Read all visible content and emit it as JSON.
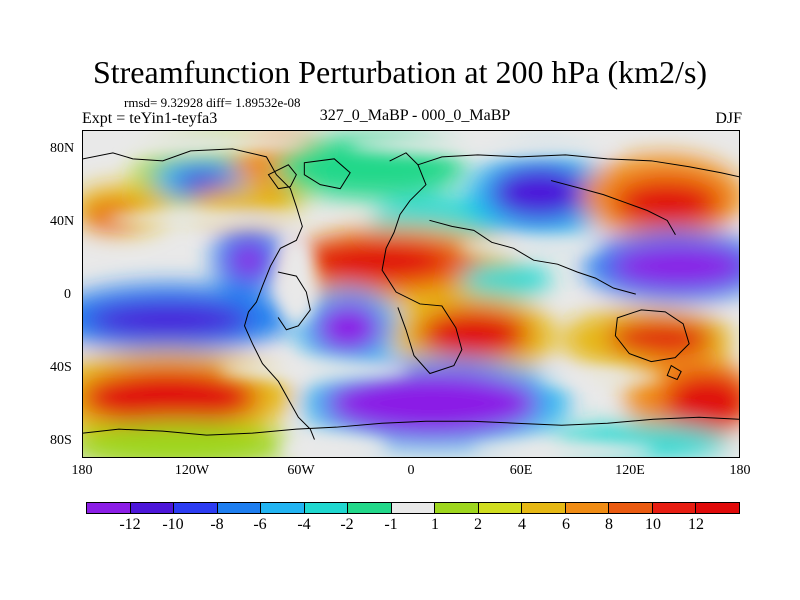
{
  "title": "Streamfunction Perturbation at 200 hPa (km2/s)",
  "stats": "rmsd= 9.32928 diff= 1.89532e-08",
  "left_label": "Expt = teYin1-teyfa3",
  "center_label": "327_0_MaBP - 000_0_MaBP",
  "right_label": "DJF",
  "axes": {
    "y_ticks": [
      "80N",
      "40N",
      "0",
      "40S",
      "80S"
    ],
    "x_ticks": [
      "180",
      "120W",
      "60W",
      "0",
      "60E",
      "120E",
      "180"
    ]
  },
  "legend": {
    "labels": [
      "-12",
      "-10",
      "-8",
      "-6",
      "-4",
      "-2",
      "-1",
      "1",
      "2",
      "4",
      "6",
      "8",
      "10",
      "12"
    ],
    "colors": [
      "#8b1ee6",
      "#4c16d9",
      "#2c3cf2",
      "#1e7ef0",
      "#22b4f2",
      "#20d8d0",
      "#22d88a",
      "#e9e9e9",
      "#9ed61e",
      "#d0dd20",
      "#e6b814",
      "#f08c14",
      "#ea5a10",
      "#e71d12",
      "#e00a0a"
    ]
  }
}
